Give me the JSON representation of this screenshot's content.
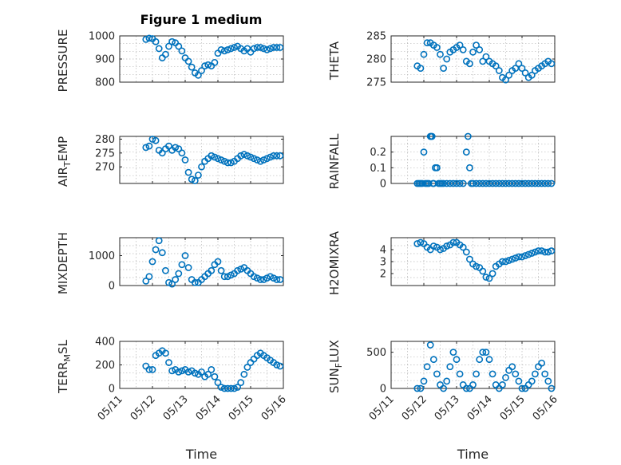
{
  "figure_title": "Figure 1 medium",
  "colors": {
    "marker": "#0072BD",
    "axis": "#262626",
    "grid": "#b8b8b8"
  },
  "x_tick_labels": [
    "05/11",
    "05/12",
    "05/13",
    "05/14",
    "05/15",
    "05/16"
  ],
  "chart_data": [
    {
      "type": "scatter",
      "ylabel": "PRESSURE",
      "title": "Figure 1 medium",
      "xlim": [
        0,
        5
      ],
      "ylim": [
        800,
        1000
      ],
      "yticks": [
        800,
        900,
        1000
      ],
      "xticks": [
        0,
        1,
        2,
        3,
        4,
        5
      ],
      "x_tick_labels": [
        "05/11",
        "05/12",
        "05/13",
        "05/14",
        "05/15",
        "05/16"
      ],
      "xlabel": "",
      "grid": true,
      "x": [
        0.8,
        0.9,
        1.0,
        1.1,
        1.2,
        1.3,
        1.4,
        1.5,
        1.6,
        1.7,
        1.8,
        1.9,
        2.0,
        2.1,
        2.2,
        2.3,
        2.4,
        2.5,
        2.6,
        2.7,
        2.8,
        2.9,
        3.0,
        3.1,
        3.2,
        3.3,
        3.4,
        3.5,
        3.6,
        3.7,
        3.8,
        3.9,
        4.0,
        4.1,
        4.2,
        4.3,
        4.4,
        4.5,
        4.6,
        4.7,
        4.8,
        4.9
      ],
      "y": [
        985,
        990,
        988,
        975,
        945,
        905,
        920,
        955,
        975,
        970,
        955,
        935,
        905,
        890,
        865,
        840,
        830,
        850,
        870,
        875,
        870,
        885,
        925,
        940,
        935,
        940,
        945,
        950,
        955,
        945,
        935,
        945,
        930,
        945,
        950,
        950,
        945,
        940,
        945,
        950,
        950,
        950
      ]
    },
    {
      "type": "scatter",
      "ylabel": "THETA",
      "xlim": [
        0,
        5
      ],
      "ylim": [
        275,
        285
      ],
      "yticks": [
        275,
        280,
        285
      ],
      "xticks": [
        0,
        1,
        2,
        3,
        4,
        5
      ],
      "x_tick_labels": [
        "05/11",
        "05/12",
        "05/13",
        "05/14",
        "05/15",
        "05/16"
      ],
      "xlabel": "",
      "grid": true,
      "x": [
        0.8,
        0.9,
        1.0,
        1.1,
        1.2,
        1.3,
        1.4,
        1.5,
        1.6,
        1.7,
        1.8,
        1.9,
        2.0,
        2.1,
        2.2,
        2.3,
        2.4,
        2.5,
        2.6,
        2.7,
        2.8,
        2.9,
        3.0,
        3.1,
        3.2,
        3.3,
        3.4,
        3.5,
        3.6,
        3.7,
        3.8,
        3.9,
        4.0,
        4.1,
        4.2,
        4.3,
        4.4,
        4.5,
        4.6,
        4.7,
        4.8,
        4.9
      ],
      "y": [
        278.5,
        278,
        281,
        283.5,
        283.5,
        283,
        282.5,
        281,
        278,
        280,
        281.5,
        282,
        282.5,
        283,
        282,
        279.5,
        279,
        281.5,
        283,
        282,
        279.5,
        280.5,
        279.5,
        279,
        278.5,
        277.5,
        276,
        275.5,
        276.5,
        277.5,
        278,
        279,
        278,
        277,
        276,
        276.5,
        277.5,
        278,
        278.5,
        279,
        279.5,
        279
      ]
    },
    {
      "type": "scatter",
      "ylabel": "AIR_TEMP",
      "xlim": [
        0,
        5
      ],
      "ylim": [
        264,
        281
      ],
      "yticks": [
        270,
        275,
        280
      ],
      "xticks": [
        0,
        1,
        2,
        3,
        4,
        5
      ],
      "x_tick_labels": [
        "05/11",
        "05/12",
        "05/13",
        "05/14",
        "05/15",
        "05/16"
      ],
      "xlabel": "",
      "grid": true,
      "x": [
        0.8,
        0.9,
        1.0,
        1.1,
        1.2,
        1.3,
        1.4,
        1.5,
        1.6,
        1.7,
        1.8,
        1.9,
        2.0,
        2.1,
        2.2,
        2.3,
        2.4,
        2.5,
        2.6,
        2.7,
        2.8,
        2.9,
        3.0,
        3.1,
        3.2,
        3.3,
        3.4,
        3.5,
        3.6,
        3.7,
        3.8,
        3.9,
        4.0,
        4.1,
        4.2,
        4.3,
        4.4,
        4.5,
        4.6,
        4.7,
        4.8,
        4.9
      ],
      "y": [
        277,
        277.5,
        280,
        279.5,
        276,
        275,
        276.5,
        277.5,
        276,
        277,
        276.5,
        275,
        272.5,
        268,
        265.5,
        265,
        267,
        270,
        272,
        273,
        274,
        273.5,
        273,
        272.5,
        272,
        271.5,
        271.5,
        272,
        273,
        274,
        274.5,
        274,
        273.5,
        273,
        272.5,
        272,
        272.5,
        273,
        273.5,
        274,
        274,
        274
      ]
    },
    {
      "type": "scatter",
      "ylabel": "RAINFALL",
      "xlim": [
        0,
        5
      ],
      "ylim": [
        0,
        0.3
      ],
      "yticks": [
        0,
        0.1,
        0.2
      ],
      "xticks": [
        0,
        1,
        2,
        3,
        4,
        5
      ],
      "x_tick_labels": [
        "05/11",
        "05/12",
        "05/13",
        "05/14",
        "05/15",
        "05/16"
      ],
      "xlabel": "",
      "grid": true,
      "x": [
        0.8,
        0.85,
        0.9,
        0.95,
        1.0,
        1.05,
        1.1,
        1.15,
        1.2,
        1.22,
        1.25,
        1.28,
        1.3,
        1.35,
        1.4,
        1.45,
        1.5,
        1.55,
        1.6,
        1.7,
        1.8,
        1.9,
        2.0,
        2.1,
        2.2,
        2.3,
        2.35,
        2.4,
        2.45,
        2.5,
        2.6,
        2.7,
        2.8,
        2.9,
        3.0,
        3.1,
        3.2,
        3.3,
        3.4,
        3.5,
        3.6,
        3.7,
        3.8,
        3.9,
        4.0,
        4.1,
        4.2,
        4.3,
        4.4,
        4.5,
        4.6,
        4.7,
        4.8,
        4.9
      ],
      "y": [
        0,
        0,
        0,
        0,
        0.2,
        0,
        0,
        0,
        0.3,
        0.3,
        0.3,
        0,
        0,
        0.1,
        0.1,
        0,
        0,
        0,
        0,
        0,
        0,
        0,
        0,
        0,
        0,
        0.2,
        0.3,
        0.1,
        0,
        0,
        0,
        0,
        0,
        0,
        0,
        0,
        0,
        0,
        0,
        0,
        0,
        0,
        0,
        0,
        0,
        0,
        0,
        0,
        0,
        0,
        0,
        0,
        0,
        0
      ]
    },
    {
      "type": "scatter",
      "ylabel": "MIXDEPTH",
      "xlim": [
        0,
        5
      ],
      "ylim": [
        0,
        1600
      ],
      "yticks": [
        0,
        1000
      ],
      "xticks": [
        0,
        1,
        2,
        3,
        4,
        5
      ],
      "x_tick_labels": [
        "05/11",
        "05/12",
        "05/13",
        "05/14",
        "05/15",
        "05/16"
      ],
      "xlabel": "",
      "grid": true,
      "x": [
        0.8,
        0.9,
        1.0,
        1.1,
        1.2,
        1.3,
        1.4,
        1.5,
        1.6,
        1.7,
        1.8,
        1.9,
        2.0,
        2.1,
        2.2,
        2.3,
        2.4,
        2.5,
        2.6,
        2.7,
        2.8,
        2.9,
        3.0,
        3.1,
        3.2,
        3.3,
        3.4,
        3.5,
        3.6,
        3.7,
        3.8,
        3.9,
        4.0,
        4.1,
        4.2,
        4.3,
        4.4,
        4.5,
        4.6,
        4.7,
        4.8,
        4.9
      ],
      "y": [
        150,
        300,
        800,
        1200,
        1500,
        1100,
        500,
        100,
        50,
        200,
        400,
        700,
        1000,
        600,
        200,
        100,
        100,
        200,
        300,
        400,
        500,
        700,
        800,
        500,
        300,
        300,
        350,
        400,
        500,
        550,
        600,
        500,
        400,
        300,
        250,
        200,
        200,
        250,
        300,
        250,
        200,
        200
      ]
    },
    {
      "type": "scatter",
      "ylabel": "H2OMIXRA",
      "xlim": [
        0,
        5
      ],
      "ylim": [
        1,
        5
      ],
      "yticks": [
        2,
        3,
        4
      ],
      "xticks": [
        0,
        1,
        2,
        3,
        4,
        5
      ],
      "x_tick_labels": [
        "05/11",
        "05/12",
        "05/13",
        "05/14",
        "05/15",
        "05/16"
      ],
      "xlabel": "",
      "grid": true,
      "x": [
        0.8,
        0.9,
        1.0,
        1.1,
        1.2,
        1.3,
        1.4,
        1.5,
        1.6,
        1.7,
        1.8,
        1.9,
        2.0,
        2.1,
        2.2,
        2.3,
        2.4,
        2.5,
        2.6,
        2.7,
        2.8,
        2.9,
        3.0,
        3.1,
        3.2,
        3.3,
        3.4,
        3.5,
        3.6,
        3.7,
        3.8,
        3.9,
        4.0,
        4.1,
        4.2,
        4.3,
        4.4,
        4.5,
        4.6,
        4.7,
        4.8,
        4.9
      ],
      "y": [
        4.5,
        4.6,
        4.5,
        4.2,
        4.0,
        4.3,
        4.2,
        4.0,
        4.1,
        4.3,
        4.4,
        4.6,
        4.6,
        4.4,
        4.2,
        3.8,
        3.2,
        2.8,
        2.6,
        2.5,
        2.2,
        1.7,
        1.6,
        2.0,
        2.6,
        2.8,
        3.0,
        3.0,
        3.1,
        3.2,
        3.3,
        3.4,
        3.4,
        3.5,
        3.6,
        3.7,
        3.8,
        3.9,
        3.9,
        3.8,
        3.8,
        3.9
      ]
    },
    {
      "type": "scatter",
      "ylabel": "TERR_MSL",
      "xlim": [
        0,
        5
      ],
      "ylim": [
        0,
        400
      ],
      "yticks": [
        0,
        200,
        400
      ],
      "xticks": [
        0,
        1,
        2,
        3,
        4,
        5
      ],
      "x_tick_labels": [
        "05/11",
        "05/12",
        "05/13",
        "05/14",
        "05/15",
        "05/16"
      ],
      "xlabel": "Time",
      "grid": true,
      "x": [
        0.8,
        0.9,
        1.0,
        1.1,
        1.2,
        1.3,
        1.4,
        1.5,
        1.6,
        1.7,
        1.8,
        1.9,
        2.0,
        2.1,
        2.2,
        2.3,
        2.4,
        2.5,
        2.6,
        2.7,
        2.8,
        2.9,
        3.0,
        3.1,
        3.2,
        3.3,
        3.4,
        3.5,
        3.6,
        3.7,
        3.8,
        3.9,
        4.0,
        4.1,
        4.2,
        4.3,
        4.4,
        4.5,
        4.6,
        4.7,
        4.8,
        4.9
      ],
      "y": [
        190,
        160,
        160,
        280,
        300,
        320,
        300,
        220,
        150,
        160,
        140,
        150,
        160,
        140,
        150,
        130,
        120,
        140,
        100,
        120,
        160,
        100,
        50,
        10,
        0,
        0,
        0,
        0,
        10,
        50,
        120,
        180,
        220,
        250,
        280,
        300,
        280,
        260,
        240,
        220,
        200,
        190
      ]
    },
    {
      "type": "scatter",
      "ylabel": "SUN_FLUX",
      "xlim": [
        0,
        5
      ],
      "ylim": [
        0,
        650
      ],
      "yticks": [
        0,
        500
      ],
      "xticks": [
        0,
        1,
        2,
        3,
        4,
        5
      ],
      "x_tick_labels": [
        "05/11",
        "05/12",
        "05/13",
        "05/14",
        "05/15",
        "05/16"
      ],
      "xlabel": "Time",
      "grid": true,
      "x": [
        0.8,
        0.9,
        1.0,
        1.1,
        1.2,
        1.3,
        1.4,
        1.5,
        1.6,
        1.7,
        1.8,
        1.9,
        2.0,
        2.1,
        2.2,
        2.3,
        2.4,
        2.5,
        2.6,
        2.7,
        2.8,
        2.9,
        3.0,
        3.1,
        3.2,
        3.3,
        3.4,
        3.5,
        3.6,
        3.7,
        3.8,
        3.9,
        4.0,
        4.1,
        4.2,
        4.3,
        4.4,
        4.5,
        4.6,
        4.7,
        4.8,
        4.9
      ],
      "y": [
        0,
        0,
        100,
        300,
        600,
        400,
        200,
        50,
        0,
        100,
        300,
        500,
        400,
        200,
        50,
        0,
        0,
        50,
        200,
        400,
        500,
        500,
        400,
        200,
        50,
        0,
        50,
        150,
        250,
        300,
        200,
        100,
        0,
        0,
        50,
        100,
        200,
        300,
        350,
        200,
        100,
        0
      ]
    }
  ]
}
